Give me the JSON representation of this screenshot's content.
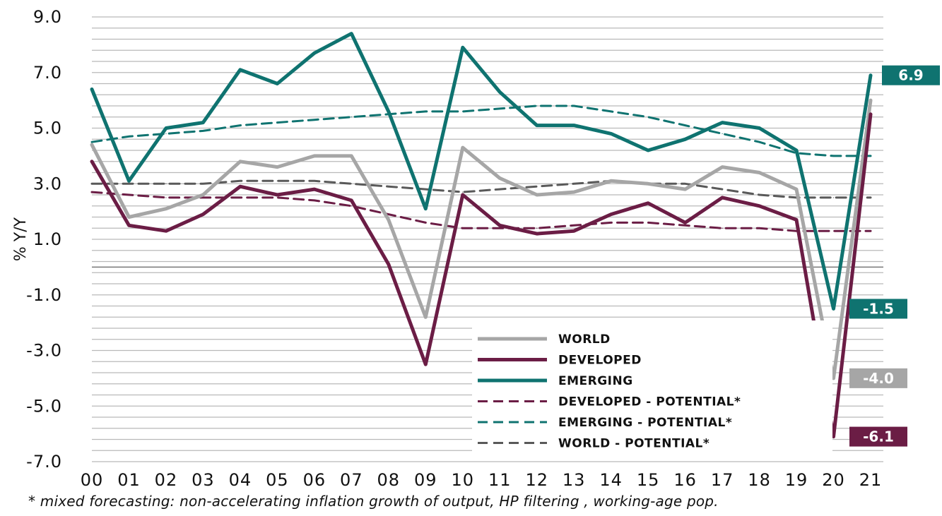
{
  "chart_data": {
    "type": "line",
    "ylabel": "% Y/Y",
    "ylim": [
      -7,
      9
    ],
    "yticks": [
      "9.0",
      "7.0",
      "5.0",
      "3.0",
      "1.0",
      "-1.0",
      "-3.0",
      "-5.0",
      "-7.0"
    ],
    "categories": [
      "00",
      "01",
      "02",
      "03",
      "04",
      "05",
      "06",
      "07",
      "08",
      "09",
      "10",
      "11",
      "12",
      "13",
      "14",
      "15",
      "16",
      "17",
      "18",
      "19",
      "20",
      "21"
    ],
    "grid": true,
    "legend_position": "bottom-right",
    "series": [
      {
        "name": "WORLD",
        "style": "solid",
        "color": "#a6a6a6",
        "values": [
          4.4,
          1.8,
          2.1,
          2.6,
          3.8,
          3.6,
          4.0,
          4.0,
          1.7,
          -1.8,
          4.3,
          3.2,
          2.6,
          2.7,
          3.1,
          3.0,
          2.8,
          3.6,
          3.4,
          2.8,
          -4.0,
          6.0
        ]
      },
      {
        "name": "DEVELOPED",
        "style": "solid",
        "color": "#6b1d45",
        "values": [
          3.8,
          1.5,
          1.3,
          1.9,
          2.9,
          2.6,
          2.8,
          2.4,
          0.1,
          -3.5,
          2.6,
          1.5,
          1.2,
          1.3,
          1.9,
          2.3,
          1.6,
          2.5,
          2.2,
          1.7,
          -6.1,
          5.5
        ]
      },
      {
        "name": "EMERGING",
        "style": "solid",
        "color": "#0f7370",
        "values": [
          6.4,
          3.1,
          5.0,
          5.2,
          7.1,
          6.6,
          7.7,
          8.4,
          5.6,
          2.1,
          7.9,
          6.3,
          5.1,
          5.1,
          4.8,
          4.2,
          4.6,
          5.2,
          5.0,
          4.2,
          -1.5,
          6.9
        ]
      },
      {
        "name": "DEVELOPED - POTENTIAL*",
        "style": "dashed",
        "color": "#6b1d45",
        "values": [
          2.7,
          2.6,
          2.5,
          2.5,
          2.5,
          2.5,
          2.4,
          2.2,
          1.9,
          1.6,
          1.4,
          1.4,
          1.4,
          1.5,
          1.6,
          1.6,
          1.5,
          1.4,
          1.4,
          1.3,
          1.3,
          1.3
        ]
      },
      {
        "name": "EMERGING - POTENTIAL*",
        "style": "dashed",
        "color": "#0f7370",
        "values": [
          4.5,
          4.7,
          4.8,
          4.9,
          5.1,
          5.2,
          5.3,
          5.4,
          5.5,
          5.6,
          5.6,
          5.7,
          5.8,
          5.8,
          5.6,
          5.4,
          5.1,
          4.8,
          4.5,
          4.1,
          4.0,
          4.0
        ]
      },
      {
        "name": "WORLD - POTENTIAL*",
        "style": "dashed",
        "color": "#595959",
        "values": [
          3.0,
          3.0,
          3.0,
          3.0,
          3.1,
          3.1,
          3.1,
          3.0,
          2.9,
          2.8,
          2.7,
          2.8,
          2.9,
          3.0,
          3.1,
          3.0,
          3.0,
          2.8,
          2.6,
          2.5,
          2.5,
          2.5
        ]
      }
    ],
    "end_labels": [
      {
        "text": "6.9",
        "color": "#0f7370"
      },
      {
        "text": "-1.5",
        "color": "#0f7370"
      },
      {
        "text": "-4.0",
        "color": "#a6a6a6"
      },
      {
        "text": "-6.1",
        "color": "#6b1d45"
      }
    ],
    "footnote": "* mixed forecasting: non-accelerating inflation growth of output, HP filtering , working-age pop."
  }
}
